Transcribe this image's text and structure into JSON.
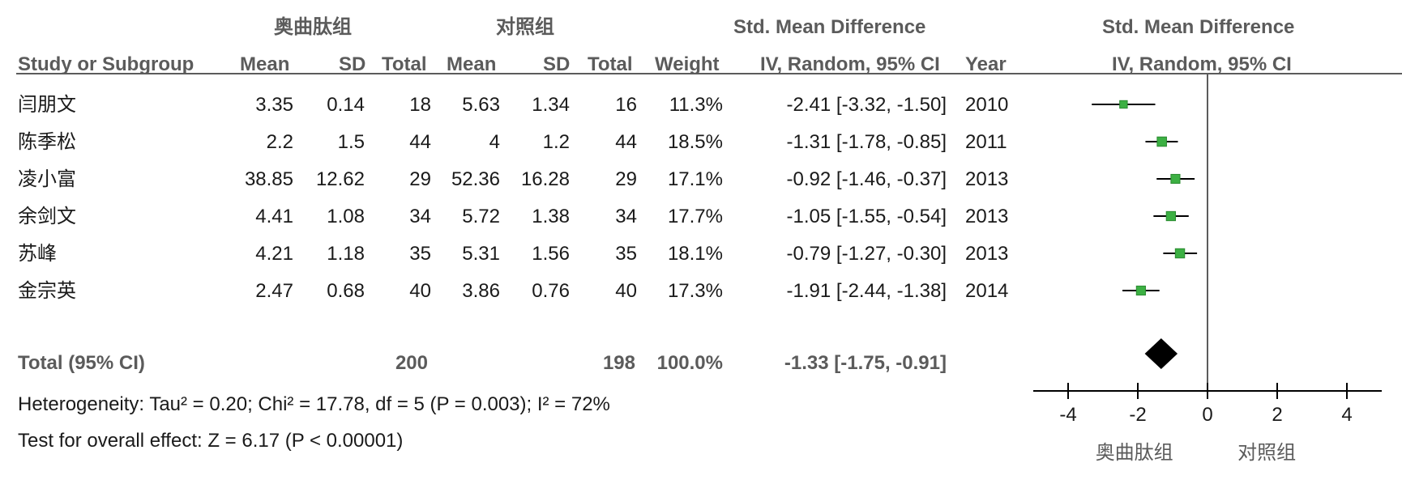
{
  "header": {
    "group_experimental": "奥曲肽组",
    "group_control": "对照组",
    "smd_title": "Std. Mean Difference",
    "plot_title": "Std. Mean Difference",
    "col_study": "Study or Subgroup",
    "col_mean_e": "Mean",
    "col_sd_e": "SD",
    "col_total_e": "Total",
    "col_mean_c": "Mean",
    "col_sd_c": "SD",
    "col_total_c": "Total",
    "col_weight": "Weight",
    "col_ci": "IV, Random, 95% CI",
    "col_year": "Year",
    "plot_subtitle": "IV, Random, 95% CI"
  },
  "rows": [
    {
      "study": "闫朋文",
      "mean_e": "3.35",
      "sd_e": "0.14",
      "total_e": "18",
      "mean_c": "5.63",
      "sd_c": "1.34",
      "total_c": "16",
      "weight": "11.3%",
      "ci": "-2.41 [-3.32, -1.50]",
      "year": "2010"
    },
    {
      "study": "陈季松",
      "mean_e": "2.2",
      "sd_e": "1.5",
      "total_e": "44",
      "mean_c": "4",
      "sd_c": "1.2",
      "total_c": "44",
      "weight": "18.5%",
      "ci": "-1.31 [-1.78, -0.85]",
      "year": "2011"
    },
    {
      "study": "凌小富",
      "mean_e": "38.85",
      "sd_e": "12.62",
      "total_e": "29",
      "mean_c": "52.36",
      "sd_c": "16.28",
      "total_c": "29",
      "weight": "17.1%",
      "ci": "-0.92 [-1.46, -0.37]",
      "year": "2013"
    },
    {
      "study": "余剑文",
      "mean_e": "4.41",
      "sd_e": "1.08",
      "total_e": "34",
      "mean_c": "5.72",
      "sd_c": "1.38",
      "total_c": "34",
      "weight": "17.7%",
      "ci": "-1.05 [-1.55, -0.54]",
      "year": "2013"
    },
    {
      "study": "苏峰",
      "mean_e": "4.21",
      "sd_e": "1.18",
      "total_e": "35",
      "mean_c": "5.31",
      "sd_c": "1.56",
      "total_c": "35",
      "weight": "18.1%",
      "ci": "-0.79 [-1.27, -0.30]",
      "year": "2013"
    },
    {
      "study": "金宗英",
      "mean_e": "2.47",
      "sd_e": "0.68",
      "total_e": "40",
      "mean_c": "3.86",
      "sd_c": "0.76",
      "total_c": "40",
      "weight": "17.3%",
      "ci": "-1.91 [-2.44, -1.38]",
      "year": "2014"
    }
  ],
  "total": {
    "label": "Total (95% CI)",
    "total_e": "200",
    "total_c": "198",
    "weight": "100.0%",
    "ci": "-1.33 [-1.75, -0.91]"
  },
  "heterogeneity": "Heterogeneity: Tau² = 0.20; Chi² = 17.78, df = 5 (P = 0.003); I² = 72%",
  "overall_effect": "Test for overall effect: Z = 6.17 (P < 0.00001)",
  "colors": {
    "header_text": "#5b5b5b",
    "box": "#3cb043",
    "box_edge": "#2a8a30",
    "line": "#000000",
    "diamond": "#000000",
    "zero_line": "#5b5b5b"
  },
  "chart_data": {
    "type": "forest",
    "x_ticks": [
      -4,
      -2,
      0,
      2,
      4
    ],
    "xlim": [
      -5,
      5
    ],
    "favours_left": "奥曲肽组",
    "favours_right": "对照组",
    "studies": [
      {
        "name": "闫朋文",
        "est": -2.41,
        "lo": -3.32,
        "hi": -1.5,
        "weight": 11.3
      },
      {
        "name": "陈季松",
        "est": -1.31,
        "lo": -1.78,
        "hi": -0.85,
        "weight": 18.5
      },
      {
        "name": "凌小富",
        "est": -0.92,
        "lo": -1.46,
        "hi": -0.37,
        "weight": 17.1
      },
      {
        "name": "余剑文",
        "est": -1.05,
        "lo": -1.55,
        "hi": -0.54,
        "weight": 17.7
      },
      {
        "name": "苏峰",
        "est": -0.79,
        "lo": -1.27,
        "hi": -0.3,
        "weight": 18.1
      },
      {
        "name": "金宗英",
        "est": -1.91,
        "lo": -2.44,
        "hi": -1.38,
        "weight": 17.3
      }
    ],
    "pooled": {
      "est": -1.33,
      "lo": -1.75,
      "hi": -0.91
    }
  }
}
